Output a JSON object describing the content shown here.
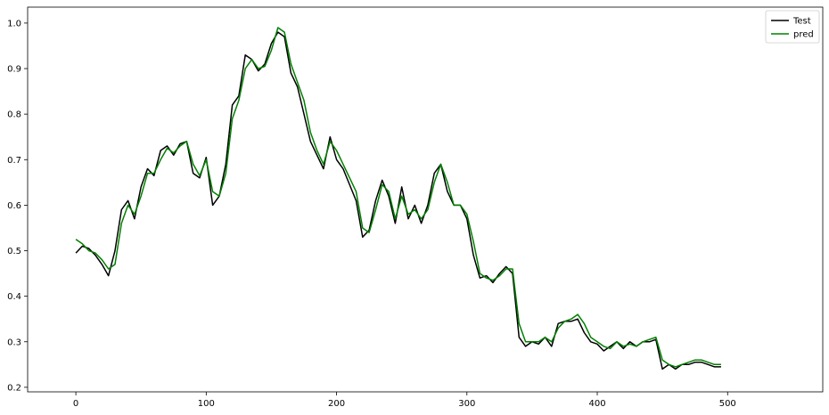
{
  "chart_data": {
    "type": "line",
    "title": "",
    "xlabel": "",
    "ylabel": "",
    "xlim": [
      -37,
      573
    ],
    "ylim": [
      0.19,
      1.035
    ],
    "x_ticks": [
      0,
      100,
      200,
      300,
      400,
      500
    ],
    "y_ticks": [
      0.2,
      0.3,
      0.4,
      0.5,
      0.6,
      0.7,
      0.8,
      0.9,
      1.0
    ],
    "y_tick_labels": [
      "0.2",
      "0.3",
      "0.4",
      "0.5",
      "0.6",
      "0.7",
      "0.8",
      "0.9",
      "1.0"
    ],
    "grid": false,
    "legend_position": "top-right",
    "x_step": 5,
    "series": [
      {
        "name": "Test",
        "color": "#000000",
        "values": [
          0.495,
          0.51,
          0.505,
          0.49,
          0.47,
          0.445,
          0.5,
          0.59,
          0.61,
          0.57,
          0.64,
          0.68,
          0.665,
          0.72,
          0.73,
          0.71,
          0.735,
          0.74,
          0.67,
          0.66,
          0.705,
          0.6,
          0.62,
          0.69,
          0.82,
          0.84,
          0.93,
          0.92,
          0.895,
          0.91,
          0.955,
          0.98,
          0.97,
          0.89,
          0.86,
          0.8,
          0.74,
          0.71,
          0.68,
          0.75,
          0.7,
          0.68,
          0.645,
          0.61,
          0.53,
          0.545,
          0.61,
          0.655,
          0.62,
          0.56,
          0.64,
          0.57,
          0.6,
          0.56,
          0.6,
          0.67,
          0.69,
          0.63,
          0.6,
          0.6,
          0.57,
          0.49,
          0.44,
          0.445,
          0.43,
          0.45,
          0.465,
          0.45,
          0.31,
          0.29,
          0.3,
          0.295,
          0.31,
          0.29,
          0.34,
          0.345,
          0.345,
          0.35,
          0.32,
          0.3,
          0.295,
          0.28,
          0.29,
          0.3,
          0.285,
          0.3,
          0.29,
          0.3,
          0.3,
          0.305,
          0.24,
          0.25,
          0.24,
          0.25,
          0.25,
          0.255,
          0.255,
          0.25,
          0.245,
          0.245
        ]
      },
      {
        "name": "pred",
        "color": "#008000",
        "values": [
          0.525,
          0.515,
          0.5,
          0.495,
          0.48,
          0.46,
          0.47,
          0.56,
          0.6,
          0.58,
          0.62,
          0.67,
          0.67,
          0.7,
          0.725,
          0.715,
          0.73,
          0.74,
          0.69,
          0.665,
          0.7,
          0.63,
          0.62,
          0.67,
          0.79,
          0.83,
          0.9,
          0.92,
          0.9,
          0.905,
          0.94,
          0.99,
          0.98,
          0.91,
          0.87,
          0.83,
          0.76,
          0.72,
          0.69,
          0.74,
          0.72,
          0.69,
          0.66,
          0.63,
          0.55,
          0.54,
          0.59,
          0.645,
          0.63,
          0.57,
          0.62,
          0.58,
          0.59,
          0.57,
          0.59,
          0.65,
          0.69,
          0.65,
          0.6,
          0.6,
          0.58,
          0.52,
          0.45,
          0.44,
          0.435,
          0.445,
          0.46,
          0.46,
          0.34,
          0.3,
          0.3,
          0.3,
          0.31,
          0.3,
          0.33,
          0.345,
          0.35,
          0.36,
          0.34,
          0.31,
          0.3,
          0.29,
          0.285,
          0.3,
          0.29,
          0.295,
          0.29,
          0.3,
          0.305,
          0.31,
          0.26,
          0.25,
          0.245,
          0.25,
          0.255,
          0.26,
          0.26,
          0.255,
          0.25,
          0.25
        ]
      }
    ]
  }
}
